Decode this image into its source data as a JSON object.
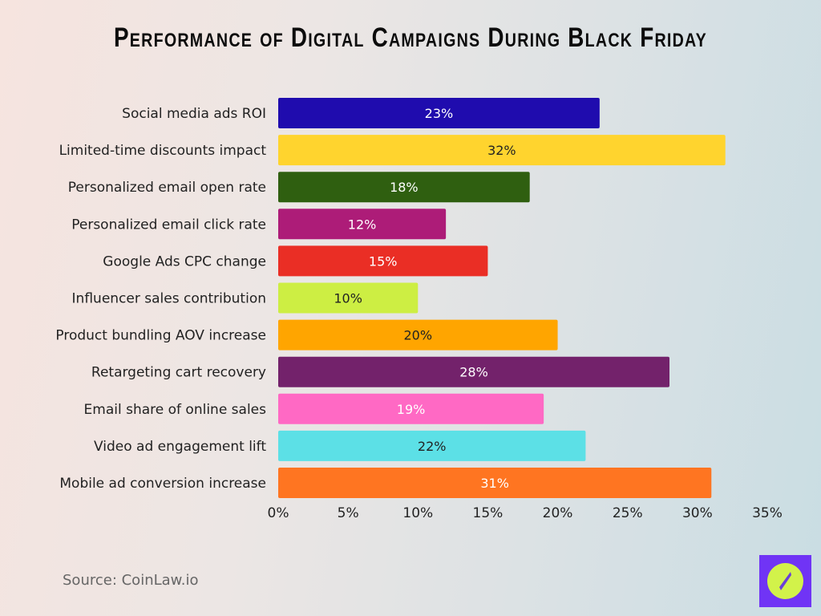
{
  "chart_data": {
    "type": "bar",
    "orientation": "horizontal",
    "title": "Performance of Digital Campaigns During Black Friday",
    "categories": [
      "Social media ads ROI",
      "Limited-time discounts impact",
      "Personalized email open rate",
      "Personalized email click rate",
      "Google Ads CPC change",
      "Influencer sales contribution",
      "Product bundling AOV increase",
      "Retargeting cart recovery",
      "Email share of online sales",
      "Video ad engagement lift",
      "Mobile ad conversion increase"
    ],
    "values": [
      23,
      32,
      18,
      12,
      15,
      10,
      20,
      28,
      19,
      22,
      31
    ],
    "data_labels": [
      "23%",
      "32%",
      "18%",
      "12%",
      "15%",
      "10%",
      "20%",
      "28%",
      "19%",
      "22%",
      "31%"
    ],
    "colors": [
      "#1f0cae",
      "#ffd42e",
      "#2f5f10",
      "#ad1c78",
      "#ea2e25",
      "#cdee43",
      "#ffa500",
      "#73226b",
      "#ff69c4",
      "#5ce0e6",
      "#ff7521"
    ],
    "label_colors": [
      "#ffffff",
      "#222222",
      "#ffffff",
      "#ffffff",
      "#ffffff",
      "#222222",
      "#222222",
      "#ffffff",
      "#ffffff",
      "#222222",
      "#ffffff"
    ],
    "xlim": [
      0,
      35
    ],
    "xticks": [
      "0%",
      "5%",
      "10%",
      "15%",
      "20%",
      "25%",
      "30%",
      "35%"
    ],
    "xtick_values": [
      0,
      5,
      10,
      15,
      20,
      25,
      30,
      35
    ],
    "grid": false,
    "xlabel": "",
    "ylabel": ""
  },
  "source": "Source: CoinLaw.io",
  "logo": {
    "icon": "compass-icon",
    "bg": "#7034f5",
    "fg": "#d2f24a"
  }
}
